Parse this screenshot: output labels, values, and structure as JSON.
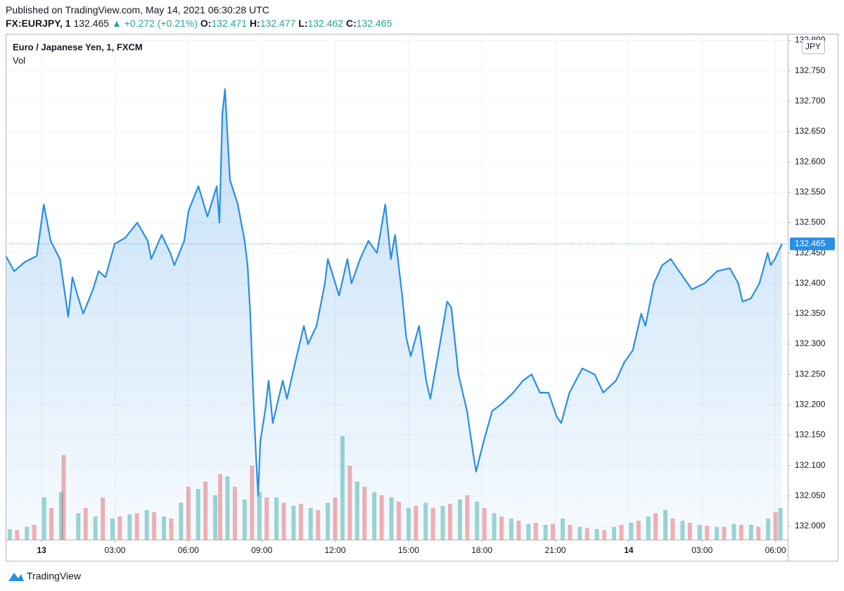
{
  "header": {
    "published": "Published on TradingView.com, May 14, 2021 06:30:28 UTC",
    "symbol": "FX:EURJPY, 1",
    "price": 132.465,
    "change": "▲ +0.272 (+0.21%)",
    "ohlc": [
      {
        "label": "O:",
        "value": 132.471
      },
      {
        "label": "H:",
        "value": 132.477
      },
      {
        "label": "L:",
        "value": 132.462
      },
      {
        "label": "C:",
        "value": 132.465
      }
    ]
  },
  "chart_data": {
    "type": "area",
    "title": "Euro / Japanese Yen, 1, FXCM",
    "volume_label": "Vol",
    "currency": "JPY",
    "xlim": [
      -1.47,
      30.5
    ],
    "ylim": [
      131.978,
      132.811
    ],
    "vlim": [
      0,
      120
    ],
    "grid": true,
    "xticks": [
      {
        "value": 0,
        "label": "13"
      },
      {
        "value": 3,
        "label": "03:00"
      },
      {
        "value": 6,
        "label": "06:00"
      },
      {
        "value": 9,
        "label": "09:00"
      },
      {
        "value": 12,
        "label": "12:00"
      },
      {
        "value": 15,
        "label": "15:00"
      },
      {
        "value": 18,
        "label": "18:00"
      },
      {
        "value": 21,
        "label": "21:00"
      },
      {
        "value": 24,
        "label": "14"
      },
      {
        "value": 27,
        "label": "03:00"
      },
      {
        "value": 30,
        "label": "06:00"
      }
    ],
    "yticks": [
      {
        "value": 132.0,
        "label": "132.000"
      },
      {
        "value": 132.05,
        "label": "132.050"
      },
      {
        "value": 132.1,
        "label": "132.100"
      },
      {
        "value": 132.15,
        "label": "132.150"
      },
      {
        "value": 132.2,
        "label": "132.200"
      },
      {
        "value": 132.25,
        "label": "132.250"
      },
      {
        "value": 132.3,
        "label": "132.300"
      },
      {
        "value": 132.35,
        "label": "132.350"
      },
      {
        "value": 132.4,
        "label": "132.400"
      },
      {
        "value": 132.45,
        "label": "132.450"
      },
      {
        "value": 132.5,
        "label": "132.500"
      },
      {
        "value": 132.55,
        "label": "132.550"
      },
      {
        "value": 132.6,
        "label": "132.600"
      },
      {
        "value": 132.65,
        "label": "132.650"
      },
      {
        "value": 132.7,
        "label": "132.700"
      },
      {
        "value": 132.75,
        "label": "132.750"
      },
      {
        "value": 132.8,
        "label": "132.800"
      }
    ],
    "series": [
      {
        "name": "EURJPY",
        "color": "#2a8ee2",
        "x": [
          -1.46,
          -1.12,
          -0.69,
          -0.2,
          0.09,
          0.37,
          0.75,
          1.09,
          1.26,
          1.47,
          1.7,
          2.1,
          2.33,
          2.61,
          2.99,
          3.42,
          3.91,
          4.34,
          4.48,
          4.91,
          5.26,
          5.43,
          5.83,
          6.01,
          6.41,
          6.78,
          7.16,
          7.27,
          7.39,
          7.5,
          7.59,
          7.7,
          8.02,
          8.3,
          8.42,
          8.53,
          8.65,
          8.76,
          8.85,
          8.94,
          9.14,
          9.28,
          9.45,
          9.86,
          10.03,
          10.37,
          10.72,
          10.89,
          11.24,
          11.58,
          11.7,
          12.16,
          12.5,
          12.67,
          13.02,
          13.36,
          13.71,
          14.05,
          14.28,
          14.45,
          14.74,
          14.91,
          15.09,
          15.43,
          15.72,
          15.89,
          16.24,
          16.58,
          16.75,
          17.04,
          17.39,
          17.64,
          17.76,
          18.07,
          18.42,
          18.76,
          19.28,
          19.68,
          20.03,
          20.37,
          20.72,
          21.06,
          21.24,
          21.58,
          22.1,
          22.61,
          22.96,
          23.48,
          23.82,
          24.17,
          24.51,
          24.68,
          25.03,
          25.37,
          25.72,
          26.06,
          26.58,
          27.1,
          27.61,
          28.13,
          28.48,
          28.65,
          28.99,
          29.34,
          29.68,
          29.8,
          29.97,
          30.26
        ],
        "values": [
          132.445,
          132.42,
          132.435,
          132.445,
          132.53,
          132.47,
          132.44,
          132.345,
          132.41,
          132.38,
          132.35,
          132.39,
          132.42,
          132.41,
          132.465,
          132.475,
          132.5,
          132.47,
          132.44,
          132.48,
          132.45,
          132.43,
          132.47,
          132.52,
          132.56,
          132.51,
          132.56,
          132.5,
          132.68,
          132.72,
          132.65,
          132.57,
          132.53,
          132.47,
          132.43,
          132.35,
          132.22,
          132.12,
          132.05,
          132.14,
          132.19,
          132.24,
          132.17,
          132.24,
          132.21,
          132.27,
          132.33,
          132.3,
          132.33,
          132.4,
          132.44,
          132.38,
          132.44,
          132.4,
          132.44,
          132.47,
          132.45,
          132.53,
          132.44,
          132.48,
          132.38,
          132.31,
          132.28,
          132.33,
          132.24,
          132.21,
          132.29,
          132.37,
          132.36,
          132.25,
          132.19,
          132.12,
          132.09,
          132.14,
          132.19,
          132.2,
          132.22,
          132.24,
          132.25,
          132.22,
          132.22,
          132.18,
          132.17,
          132.22,
          132.26,
          132.25,
          132.22,
          132.24,
          132.27,
          132.29,
          132.35,
          132.33,
          132.4,
          132.43,
          132.44,
          132.42,
          132.39,
          132.4,
          132.42,
          132.425,
          132.4,
          132.37,
          132.375,
          132.4,
          132.45,
          132.43,
          132.44,
          132.465
        ]
      }
    ],
    "volume": [
      {
        "name": "up",
        "color": "#26a69a",
        "x": [
          -1.3,
          -0.6,
          0.1,
          0.8,
          1.5,
          2.2,
          2.9,
          3.6,
          4.3,
          5.0,
          5.7,
          6.4,
          7.1,
          7.6,
          8.3,
          8.9,
          9.6,
          10.3,
          11.0,
          11.7,
          12.3,
          12.9,
          13.6,
          14.3,
          15.0,
          15.7,
          16.4,
          17.1,
          17.8,
          18.5,
          19.2,
          19.9,
          20.6,
          21.3,
          22.0,
          22.7,
          23.4,
          24.1,
          24.8,
          25.5,
          26.2,
          26.9,
          27.6,
          28.3,
          29.0,
          29.7,
          30.2
        ],
        "values": [
          10,
          12,
          40,
          45,
          25,
          22,
          20,
          24,
          28,
          22,
          35,
          48,
          42,
          60,
          38,
          45,
          40,
          32,
          30,
          35,
          98,
          55,
          45,
          40,
          30,
          35,
          32,
          38,
          36,
          25,
          20,
          15,
          14,
          20,
          12,
          10,
          12,
          16,
          22,
          28,
          18,
          14,
          12,
          15,
          14,
          20,
          30
        ]
      },
      {
        "name": "down",
        "color": "#ef5350",
        "x": [
          -1.0,
          -0.3,
          0.4,
          0.9,
          1.8,
          2.5,
          3.2,
          3.9,
          4.6,
          5.3,
          6.0,
          6.7,
          7.3,
          7.9,
          8.6,
          9.2,
          9.9,
          10.6,
          11.3,
          12.0,
          12.6,
          13.2,
          13.9,
          14.6,
          15.3,
          16.0,
          16.7,
          17.4,
          18.1,
          18.8,
          19.5,
          20.2,
          20.9,
          21.6,
          22.3,
          23.0,
          23.7,
          24.4,
          25.1,
          25.8,
          26.5,
          27.2,
          27.9,
          28.6,
          29.3,
          30.0
        ],
        "values": [
          9,
          14,
          30,
          80,
          30,
          40,
          22,
          25,
          26,
          20,
          50,
          55,
          62,
          50,
          70,
          40,
          35,
          34,
          28,
          40,
          70,
          50,
          42,
          36,
          32,
          30,
          34,
          42,
          30,
          22,
          18,
          16,
          15,
          14,
          11,
          9,
          14,
          18,
          25,
          20,
          16,
          13,
          12,
          14,
          12,
          26
        ]
      }
    ]
  },
  "footer": {
    "brand": "TradingView"
  }
}
